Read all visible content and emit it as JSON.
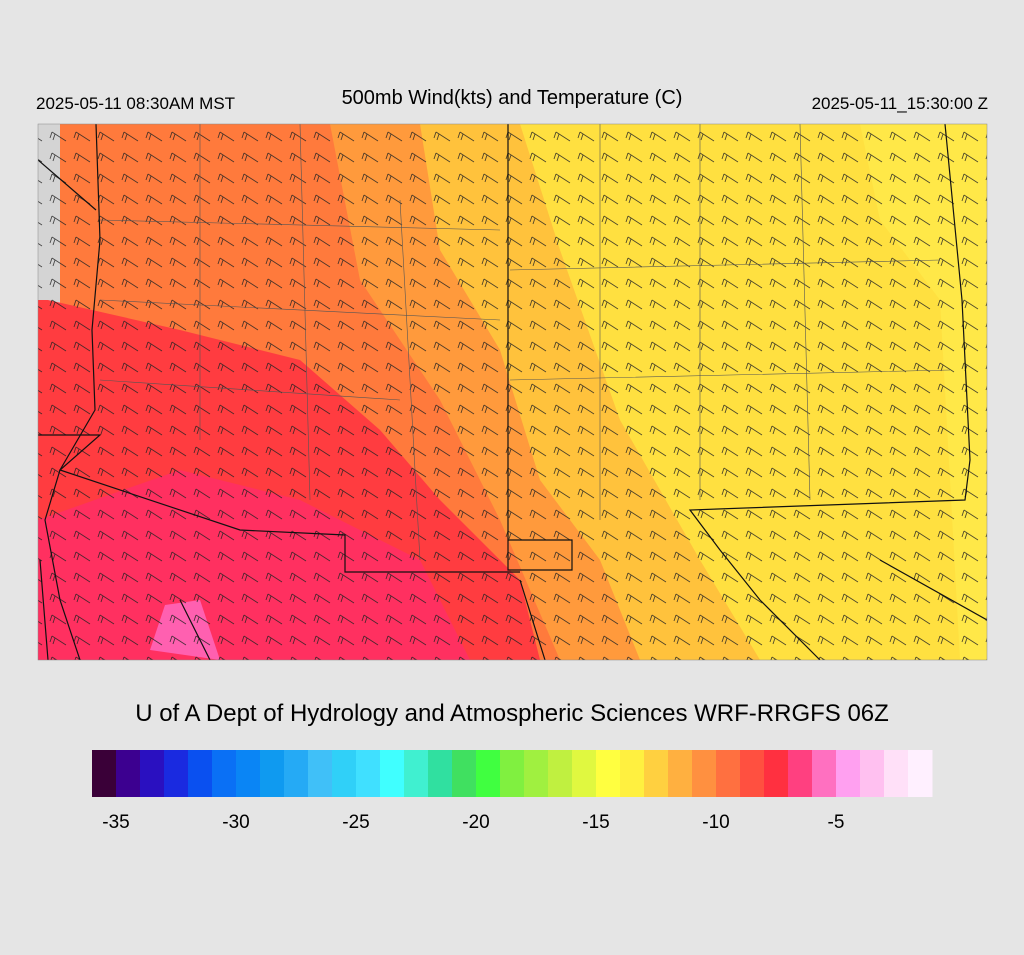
{
  "header": {
    "left_time": "2025-05-11 08:30AM MST",
    "title": "500mb Wind(kts) and Temperature (C)",
    "right_time": "2025-05-11_15:30:00 Z"
  },
  "credit": "U of A Dept of Hydrology and Atmospheric Sciences WRF-RRGFS 06Z",
  "colorbar": {
    "lim": [
      -36,
      -1
    ],
    "ticks": [
      -35,
      -30,
      -25,
      -20,
      -15,
      -10,
      -5
    ],
    "colors": [
      "#3a0038",
      "#3c0090",
      "#2a10c0",
      "#1a2ae0",
      "#0a50f0",
      "#0a70f5",
      "#0a85f5",
      "#0f9af0",
      "#25aaf5",
      "#40c0f8",
      "#30d0f8",
      "#40e0ff",
      "#40ffff",
      "#40f0d0",
      "#30e0a0",
      "#40e060",
      "#40ff40",
      "#80f040",
      "#a0f040",
      "#c0f040",
      "#e0f840",
      "#ffff40",
      "#fff040",
      "#ffd040",
      "#ffb040",
      "#ff9040",
      "#ff7040",
      "#ff5040",
      "#ff3040",
      "#ff4080",
      "#ff70c0",
      "#ffa0f0",
      "#ffc0f0",
      "#ffe0f8",
      "#fff0ff"
    ]
  }
}
